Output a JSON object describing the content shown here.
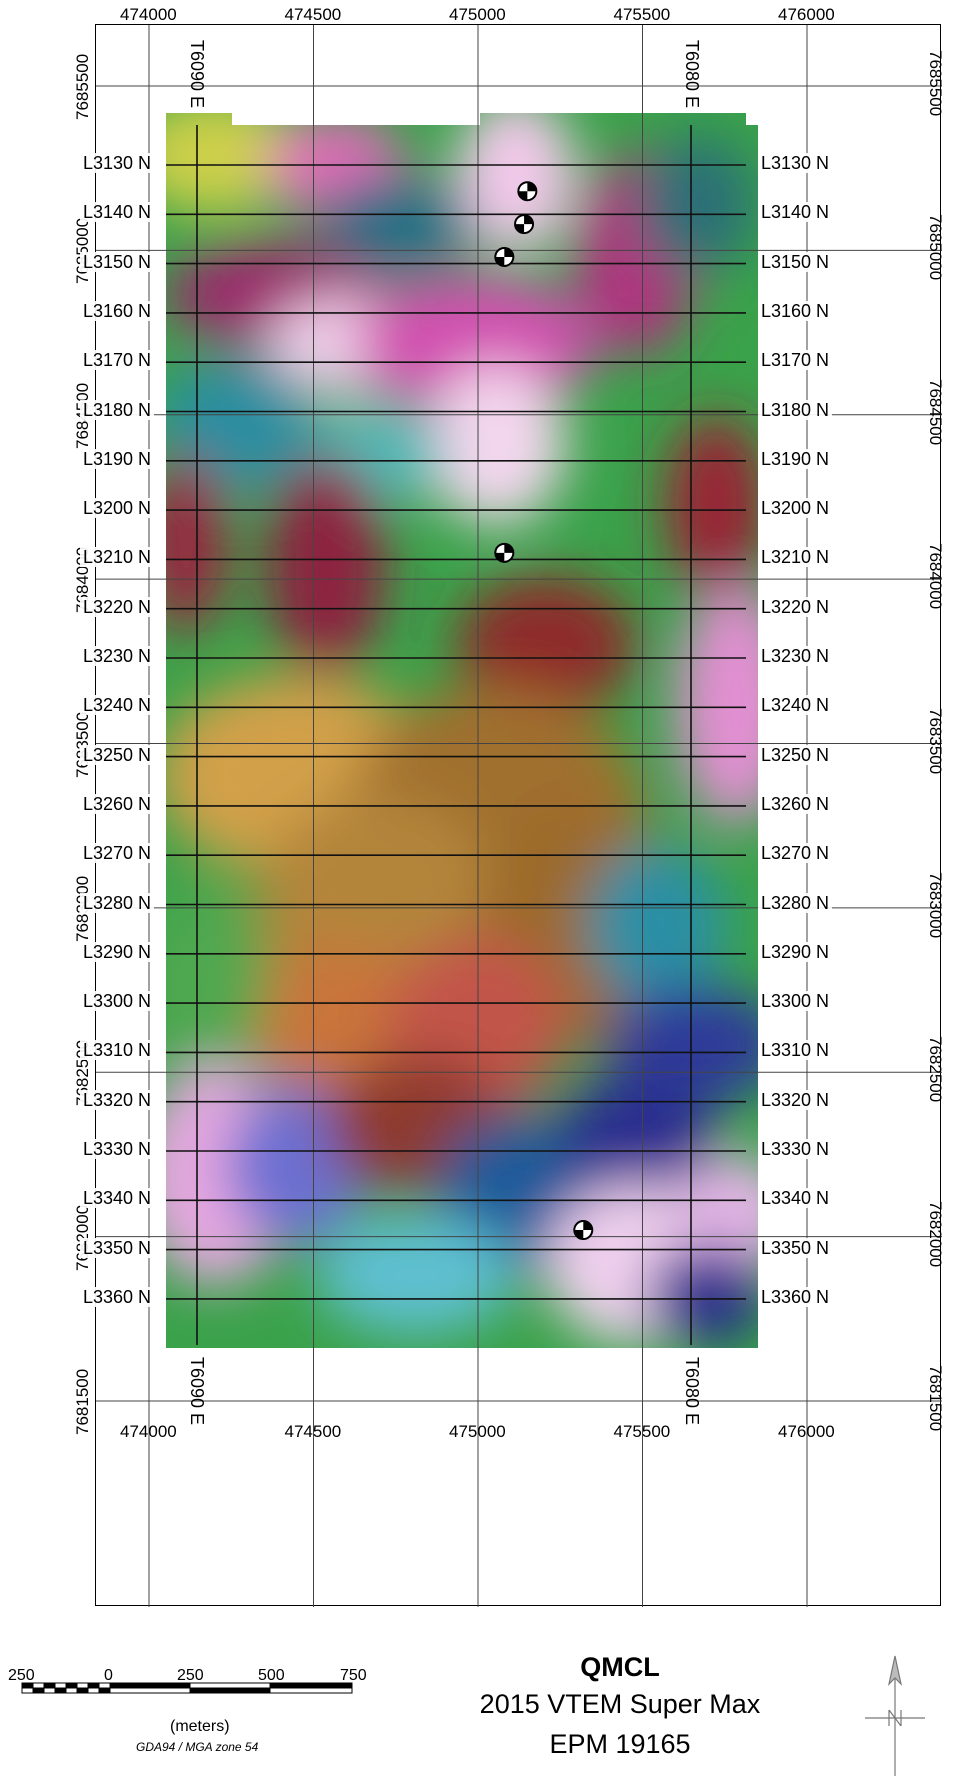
{
  "x_axis": {
    "ticks": [
      474000,
      474500,
      475000,
      475500,
      476000
    ]
  },
  "y_axis": {
    "ticks": [
      7685500,
      7685000,
      7684500,
      7684000,
      7683500,
      7683000,
      7682500,
      7682000,
      7681500
    ]
  },
  "flight_lines": [
    "L3130 N",
    "L3140 N",
    "L3150 N",
    "L3160 N",
    "L3170 N",
    "L3180 N",
    "L3190 N",
    "L3200 N",
    "L3210 N",
    "L3220 N",
    "L3230 N",
    "L3240 N",
    "L3250 N",
    "L3260 N",
    "L3270 N",
    "L3280 N",
    "L3290 N",
    "L3300 N",
    "L3310 N",
    "L3320 N",
    "L3330 N",
    "L3340 N",
    "L3350 N",
    "L3360 N"
  ],
  "tie_lines": {
    "west": "T6090 E",
    "east": "T6080 E"
  },
  "targets": [
    {
      "easting": 475150,
      "northing": 7685180
    },
    {
      "easting": 475140,
      "northing": 7685080
    },
    {
      "easting": 475080,
      "northing": 7684980
    },
    {
      "easting": 475080,
      "northing": 7684080
    },
    {
      "easting": 475320,
      "northing": 7682020
    }
  ],
  "title": {
    "main": "QMCL",
    "line2": "2015 VTEM Super Max",
    "line3": "EPM 19165"
  },
  "scale_bar": {
    "labels": [
      "250",
      "0",
      "250",
      "500",
      "750"
    ],
    "unit": "(meters)",
    "projection": "GDA94 / MGA zone 54"
  },
  "colors": {
    "high": "#f3d6ee",
    "mid_high": "#d0389f",
    "mid": "#2e8a3e",
    "low": "#8c2a2e",
    "very_low": "#2a2f8f"
  }
}
